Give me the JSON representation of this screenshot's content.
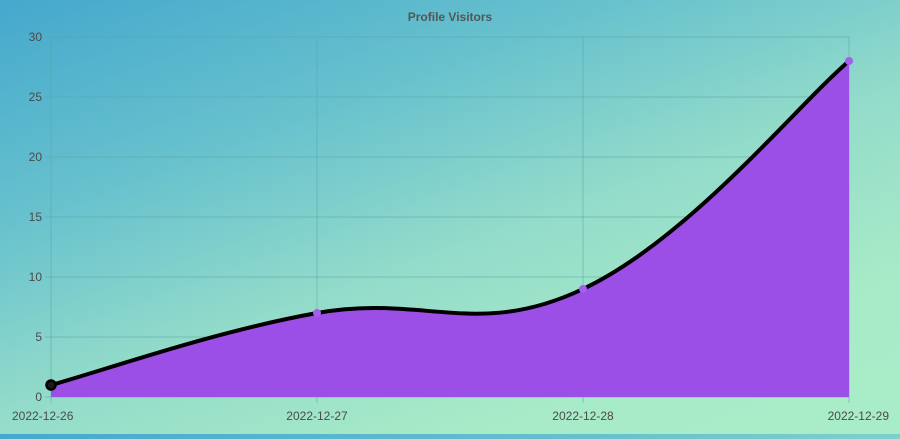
{
  "chart_data": {
    "type": "area",
    "title": "Profile Visitors",
    "xlabel": "",
    "ylabel": "",
    "categories": [
      "2022-12-26",
      "2022-12-27",
      "2022-12-28",
      "2022-12-29"
    ],
    "series": [
      {
        "values": [
          1,
          7,
          9,
          28
        ]
      }
    ],
    "ylim": [
      0,
      30
    ],
    "yticks": [
      0,
      5,
      10,
      15,
      20,
      25,
      30
    ],
    "grid": true,
    "legend": "none",
    "colors": {
      "fill": "#9b4fe6",
      "line": "#000000",
      "point": "#a45ef0",
      "grid": "#5aa6a6",
      "axis_text": "#4a4a4a",
      "title_text": "#555555"
    }
  }
}
